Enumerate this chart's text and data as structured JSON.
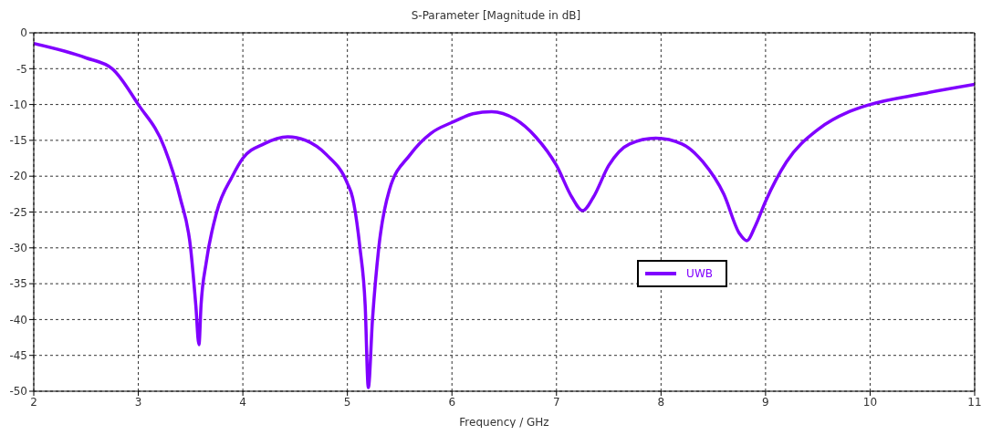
{
  "chart_data": {
    "type": "line",
    "title": "S-Parameter [Magnitude in dB]",
    "xlabel": "Frequency / GHz",
    "x": [
      2,
      2.5,
      2.75,
      3,
      3.25,
      3.4,
      3.5,
      3.55,
      3.58,
      3.6,
      3.65,
      3.75,
      3.9,
      4,
      4.2,
      4.43,
      4.6,
      4.8,
      5,
      5.05,
      5.12,
      5.17,
      5.2,
      5.24,
      5.3,
      5.4,
      5.6,
      5.8,
      6,
      6.2,
      6.38,
      6.6,
      6.8,
      7,
      7.15,
      7.25,
      7.35,
      7.5,
      7.7,
      7.95,
      8.2,
      8.4,
      8.6,
      8.75,
      8.82,
      8.9,
      9,
      9.2,
      9.5,
      9.8,
      10,
      10.5,
      11
    ],
    "series": [
      {
        "name": "UWB",
        "color": "#8000ff",
        "values": [
          -1.5,
          -3.5,
          -5,
          -10,
          -16,
          -23,
          -30,
          -38,
          -43.5,
          -38,
          -32,
          -25,
          -20,
          -17.5,
          -15.5,
          -14.5,
          -15,
          -17,
          -21,
          -23,
          -30,
          -38,
          -49.5,
          -40,
          -30,
          -22,
          -17,
          -14,
          -12.5,
          -11.3,
          -11,
          -12,
          -14.5,
          -18.5,
          -23,
          -24.8,
          -23,
          -18.5,
          -15.5,
          -14.7,
          -15.5,
          -18,
          -22.5,
          -28,
          -29,
          -27,
          -23.5,
          -18,
          -13.5,
          -11,
          -10,
          -8.5,
          -7.2
        ]
      }
    ],
    "xlim": [
      2,
      11
    ],
    "xticks": [
      2,
      3,
      4,
      5,
      6,
      7,
      8,
      9,
      10,
      11
    ],
    "ylim": [
      -50,
      0
    ],
    "yticks": [
      0,
      -5,
      -10,
      -15,
      -20,
      -25,
      -30,
      -35,
      -40,
      -45,
      -50
    ],
    "grid": true,
    "legend": "bottom right",
    "marker": "none",
    "line_style": "solid"
  }
}
